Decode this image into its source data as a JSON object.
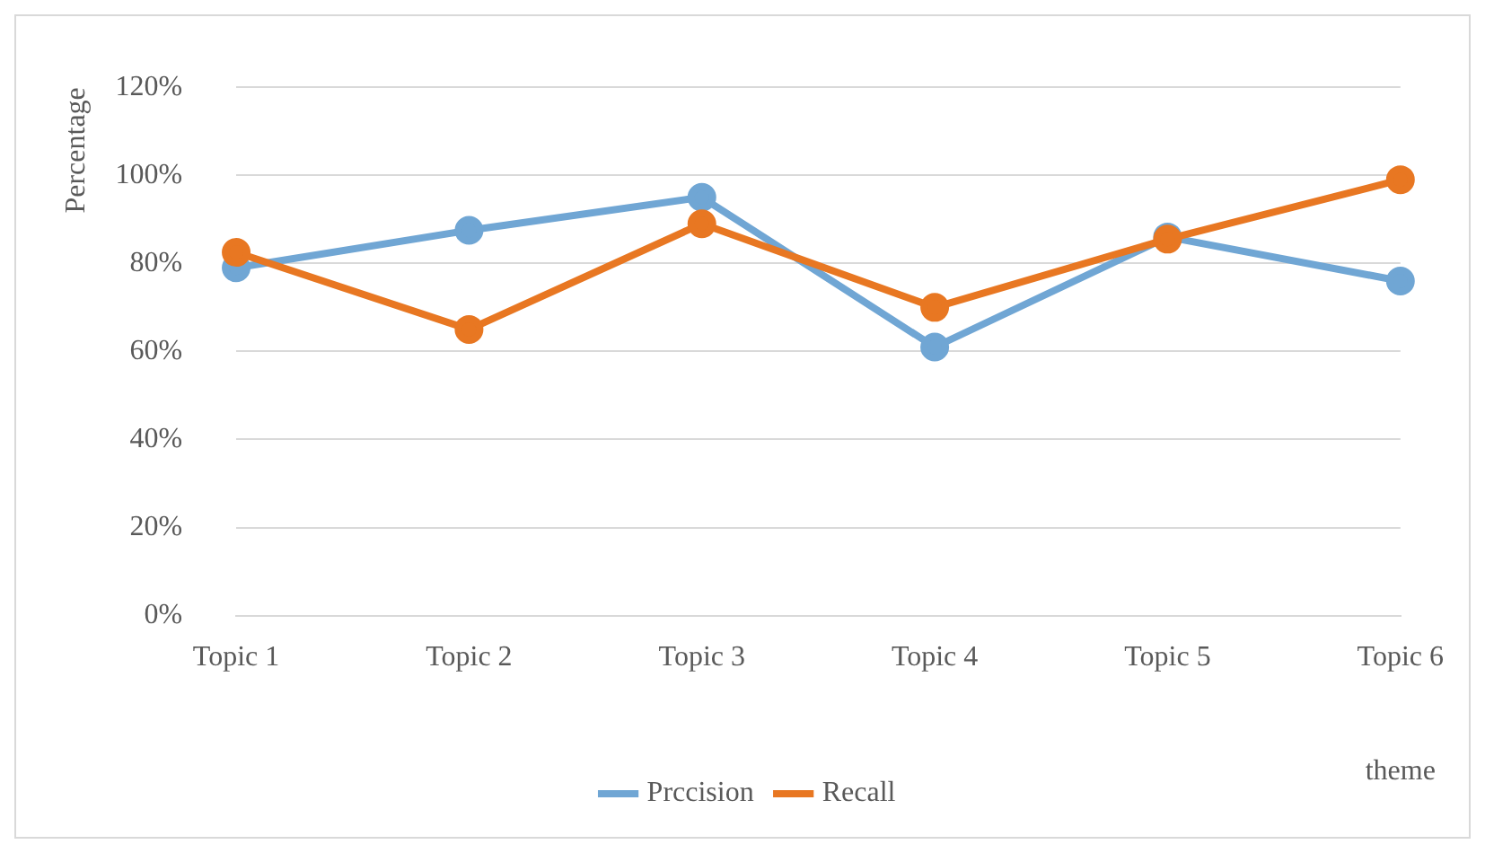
{
  "chart_data": {
    "type": "line",
    "ylabel": "Percentage",
    "xlabel": "theme",
    "categories": [
      "Topic 1",
      "Topic 2",
      "Topic 3",
      "Topic 4",
      "Topic 5",
      "Topic 6"
    ],
    "series": [
      {
        "name": "Prccision",
        "color": "#70a6d4",
        "values": [
          79,
          87.5,
          95,
          61,
          86,
          76
        ]
      },
      {
        "name": "Recall",
        "color": "#e87722",
        "values": [
          82.5,
          65,
          89,
          70,
          85.5,
          99
        ]
      }
    ],
    "ylim": [
      0,
      120
    ],
    "yticks": [
      {
        "value": 0,
        "label": "0%"
      },
      {
        "value": 20,
        "label": "20%"
      },
      {
        "value": 40,
        "label": "40%"
      },
      {
        "value": 60,
        "label": "60%"
      },
      {
        "value": 80,
        "label": "80%"
      },
      {
        "value": 100,
        "label": "100%"
      },
      {
        "value": 120,
        "label": "120%"
      }
    ],
    "grid": "y",
    "legend": "bottom",
    "marker": "circle",
    "line_style": "solid"
  }
}
